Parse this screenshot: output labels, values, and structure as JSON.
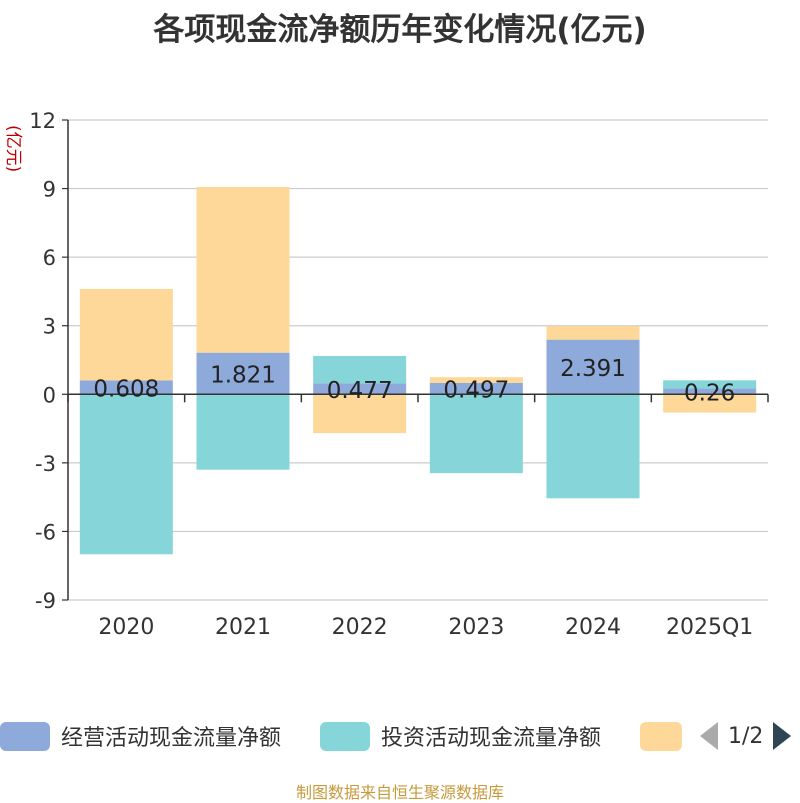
{
  "header": {
    "title": "各项现金流净额历年变化情况(亿元)",
    "unit_label": "(亿元)"
  },
  "chart_data": {
    "type": "bar",
    "stacked": true,
    "categories": [
      "2020",
      "2021",
      "2022",
      "2023",
      "2024",
      "2025Q1"
    ],
    "ylim": [
      -9,
      12
    ],
    "yticks": [
      12,
      9,
      6,
      3,
      0,
      -3,
      -6,
      -9
    ],
    "grid": true,
    "legend_position": "bottom",
    "series": [
      {
        "name": "经营活动现金流量净额",
        "color": "#8eaadb",
        "values": [
          0.608,
          1.821,
          0.477,
          0.497,
          2.391,
          0.26
        ],
        "labels": [
          "0.608",
          "1.821",
          "0.477",
          "0.497",
          "2.391",
          "0.26"
        ]
      },
      {
        "name": "投资活动现金流量净额",
        "color": "#85d5d9",
        "values": [
          -7.0,
          -3.3,
          1.2,
          -3.45,
          -4.55,
          0.35
        ]
      },
      {
        "name": "",
        "color": "#fdd899",
        "values": [
          4.0,
          7.25,
          -1.7,
          0.25,
          0.6,
          -0.8
        ]
      }
    ]
  },
  "legend": {
    "items": [
      {
        "label": "经营活动现金流量净额",
        "color": "#8eaadb"
      },
      {
        "label": "投资活动现金流量净额",
        "color": "#85d5d9"
      },
      {
        "label": "",
        "color": "#fdd899"
      }
    ],
    "pager": "1/2"
  },
  "footer": {
    "source": "制图数据来自恒生聚源数据库"
  }
}
